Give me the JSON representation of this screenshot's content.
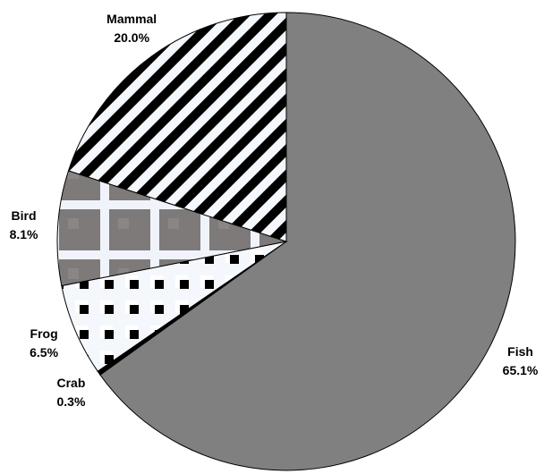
{
  "chart_data": {
    "type": "pie",
    "categories": [
      "Fish",
      "Crab",
      "Frog",
      "Bird",
      "Mammal"
    ],
    "values": [
      65.1,
      0.3,
      6.5,
      8.1,
      20.0
    ],
    "value_labels": [
      "65.1%",
      "0.3%",
      "6.5%",
      "8.1%",
      "20.0%"
    ],
    "colors": [
      "#808080",
      "#000000",
      "#ffffff",
      "#808080",
      "#000000"
    ],
    "patterns": [
      "solid",
      "solid",
      "dots",
      "checker",
      "stripes"
    ]
  }
}
